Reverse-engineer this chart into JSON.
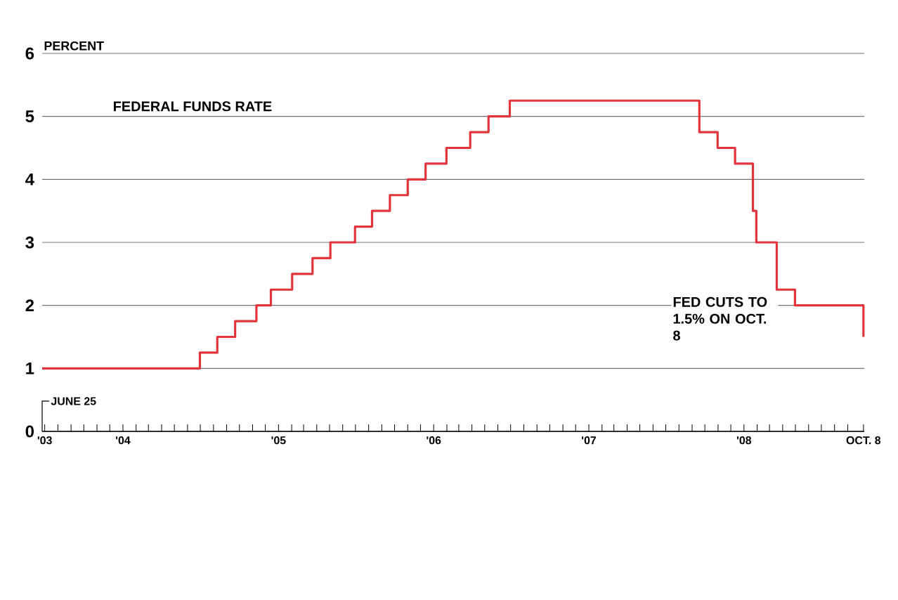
{
  "chart_data": {
    "type": "step",
    "title": "FEDERAL FUNDS RATE",
    "ylabel": "PERCENT",
    "x": [
      "2003-06-25",
      "2004-06-30",
      "2004-08-10",
      "2004-09-21",
      "2004-11-10",
      "2004-12-14",
      "2005-02-02",
      "2005-03-22",
      "2005-05-03",
      "2005-06-30",
      "2005-08-09",
      "2005-09-20",
      "2005-11-01",
      "2005-12-13",
      "2006-01-31",
      "2006-03-28",
      "2006-05-10",
      "2006-06-29",
      "2007-09-18",
      "2007-10-31",
      "2007-12-11",
      "2008-01-22",
      "2008-01-30",
      "2008-03-18",
      "2008-04-30",
      "2008-10-08"
    ],
    "values": [
      1.0,
      1.25,
      1.5,
      1.75,
      2.0,
      2.25,
      2.5,
      2.75,
      3.0,
      3.25,
      3.5,
      3.75,
      4.0,
      4.25,
      4.5,
      4.75,
      5.0,
      5.25,
      4.75,
      4.5,
      4.25,
      3.5,
      3.0,
      2.25,
      2.0,
      1.5
    ],
    "color": "#e2343a",
    "xlim": [
      "2003-06-25",
      "2008-10-10"
    ],
    "ylim": [
      0,
      6
    ],
    "yticks": [
      0,
      1,
      2,
      3,
      4,
      5,
      6
    ],
    "xticks": [
      {
        "value": "2003-07-01",
        "label": "'03"
      },
      {
        "value": "2003-08-01",
        "label": null
      },
      {
        "value": "2003-09-01",
        "label": null
      },
      {
        "value": "2003-10-01",
        "label": null
      },
      {
        "value": "2003-11-01",
        "label": null
      },
      {
        "value": "2003-12-01",
        "label": null
      },
      {
        "value": "2004-01-01",
        "label": "'04"
      },
      {
        "value": "2004-02-01",
        "label": null
      },
      {
        "value": "2004-03-01",
        "label": null
      },
      {
        "value": "2004-04-01",
        "label": null
      },
      {
        "value": "2004-05-01",
        "label": null
      },
      {
        "value": "2004-06-01",
        "label": null
      },
      {
        "value": "2004-07-01",
        "label": null
      },
      {
        "value": "2004-08-01",
        "label": null
      },
      {
        "value": "2004-09-01",
        "label": null
      },
      {
        "value": "2004-10-01",
        "label": null
      },
      {
        "value": "2004-11-01",
        "label": null
      },
      {
        "value": "2004-12-01",
        "label": null
      },
      {
        "value": "2005-01-01",
        "label": "'05"
      },
      {
        "value": "2005-02-01",
        "label": null
      },
      {
        "value": "2005-03-01",
        "label": null
      },
      {
        "value": "2005-04-01",
        "label": null
      },
      {
        "value": "2005-05-01",
        "label": null
      },
      {
        "value": "2005-06-01",
        "label": null
      },
      {
        "value": "2005-07-01",
        "label": null
      },
      {
        "value": "2005-08-01",
        "label": null
      },
      {
        "value": "2005-09-01",
        "label": null
      },
      {
        "value": "2005-10-01",
        "label": null
      },
      {
        "value": "2005-11-01",
        "label": null
      },
      {
        "value": "2005-12-01",
        "label": null
      },
      {
        "value": "2006-01-01",
        "label": "'06"
      },
      {
        "value": "2006-02-01",
        "label": null
      },
      {
        "value": "2006-03-01",
        "label": null
      },
      {
        "value": "2006-04-01",
        "label": null
      },
      {
        "value": "2006-05-01",
        "label": null
      },
      {
        "value": "2006-06-01",
        "label": null
      },
      {
        "value": "2006-07-01",
        "label": null
      },
      {
        "value": "2006-08-01",
        "label": null
      },
      {
        "value": "2006-09-01",
        "label": null
      },
      {
        "value": "2006-10-01",
        "label": null
      },
      {
        "value": "2006-11-01",
        "label": null
      },
      {
        "value": "2006-12-01",
        "label": null
      },
      {
        "value": "2007-01-01",
        "label": "'07"
      },
      {
        "value": "2007-02-01",
        "label": null
      },
      {
        "value": "2007-03-01",
        "label": null
      },
      {
        "value": "2007-04-01",
        "label": null
      },
      {
        "value": "2007-05-01",
        "label": null
      },
      {
        "value": "2007-06-01",
        "label": null
      },
      {
        "value": "2007-07-01",
        "label": null
      },
      {
        "value": "2007-08-01",
        "label": null
      },
      {
        "value": "2007-09-01",
        "label": null
      },
      {
        "value": "2007-10-01",
        "label": null
      },
      {
        "value": "2007-11-01",
        "label": null
      },
      {
        "value": "2007-12-01",
        "label": null
      },
      {
        "value": "2008-01-01",
        "label": "'08"
      },
      {
        "value": "2008-02-01",
        "label": null
      },
      {
        "value": "2008-03-01",
        "label": null
      },
      {
        "value": "2008-04-01",
        "label": null
      },
      {
        "value": "2008-05-01",
        "label": null
      },
      {
        "value": "2008-06-01",
        "label": null
      },
      {
        "value": "2008-07-01",
        "label": null
      },
      {
        "value": "2008-08-01",
        "label": null
      },
      {
        "value": "2008-09-01",
        "label": null
      },
      {
        "value": "2008-10-08",
        "label": "OCT. 8"
      }
    ],
    "grid": "y",
    "annotations": [
      "JUNE 25",
      "FED CUTS TO 1.5% ON OCT. 8"
    ]
  }
}
